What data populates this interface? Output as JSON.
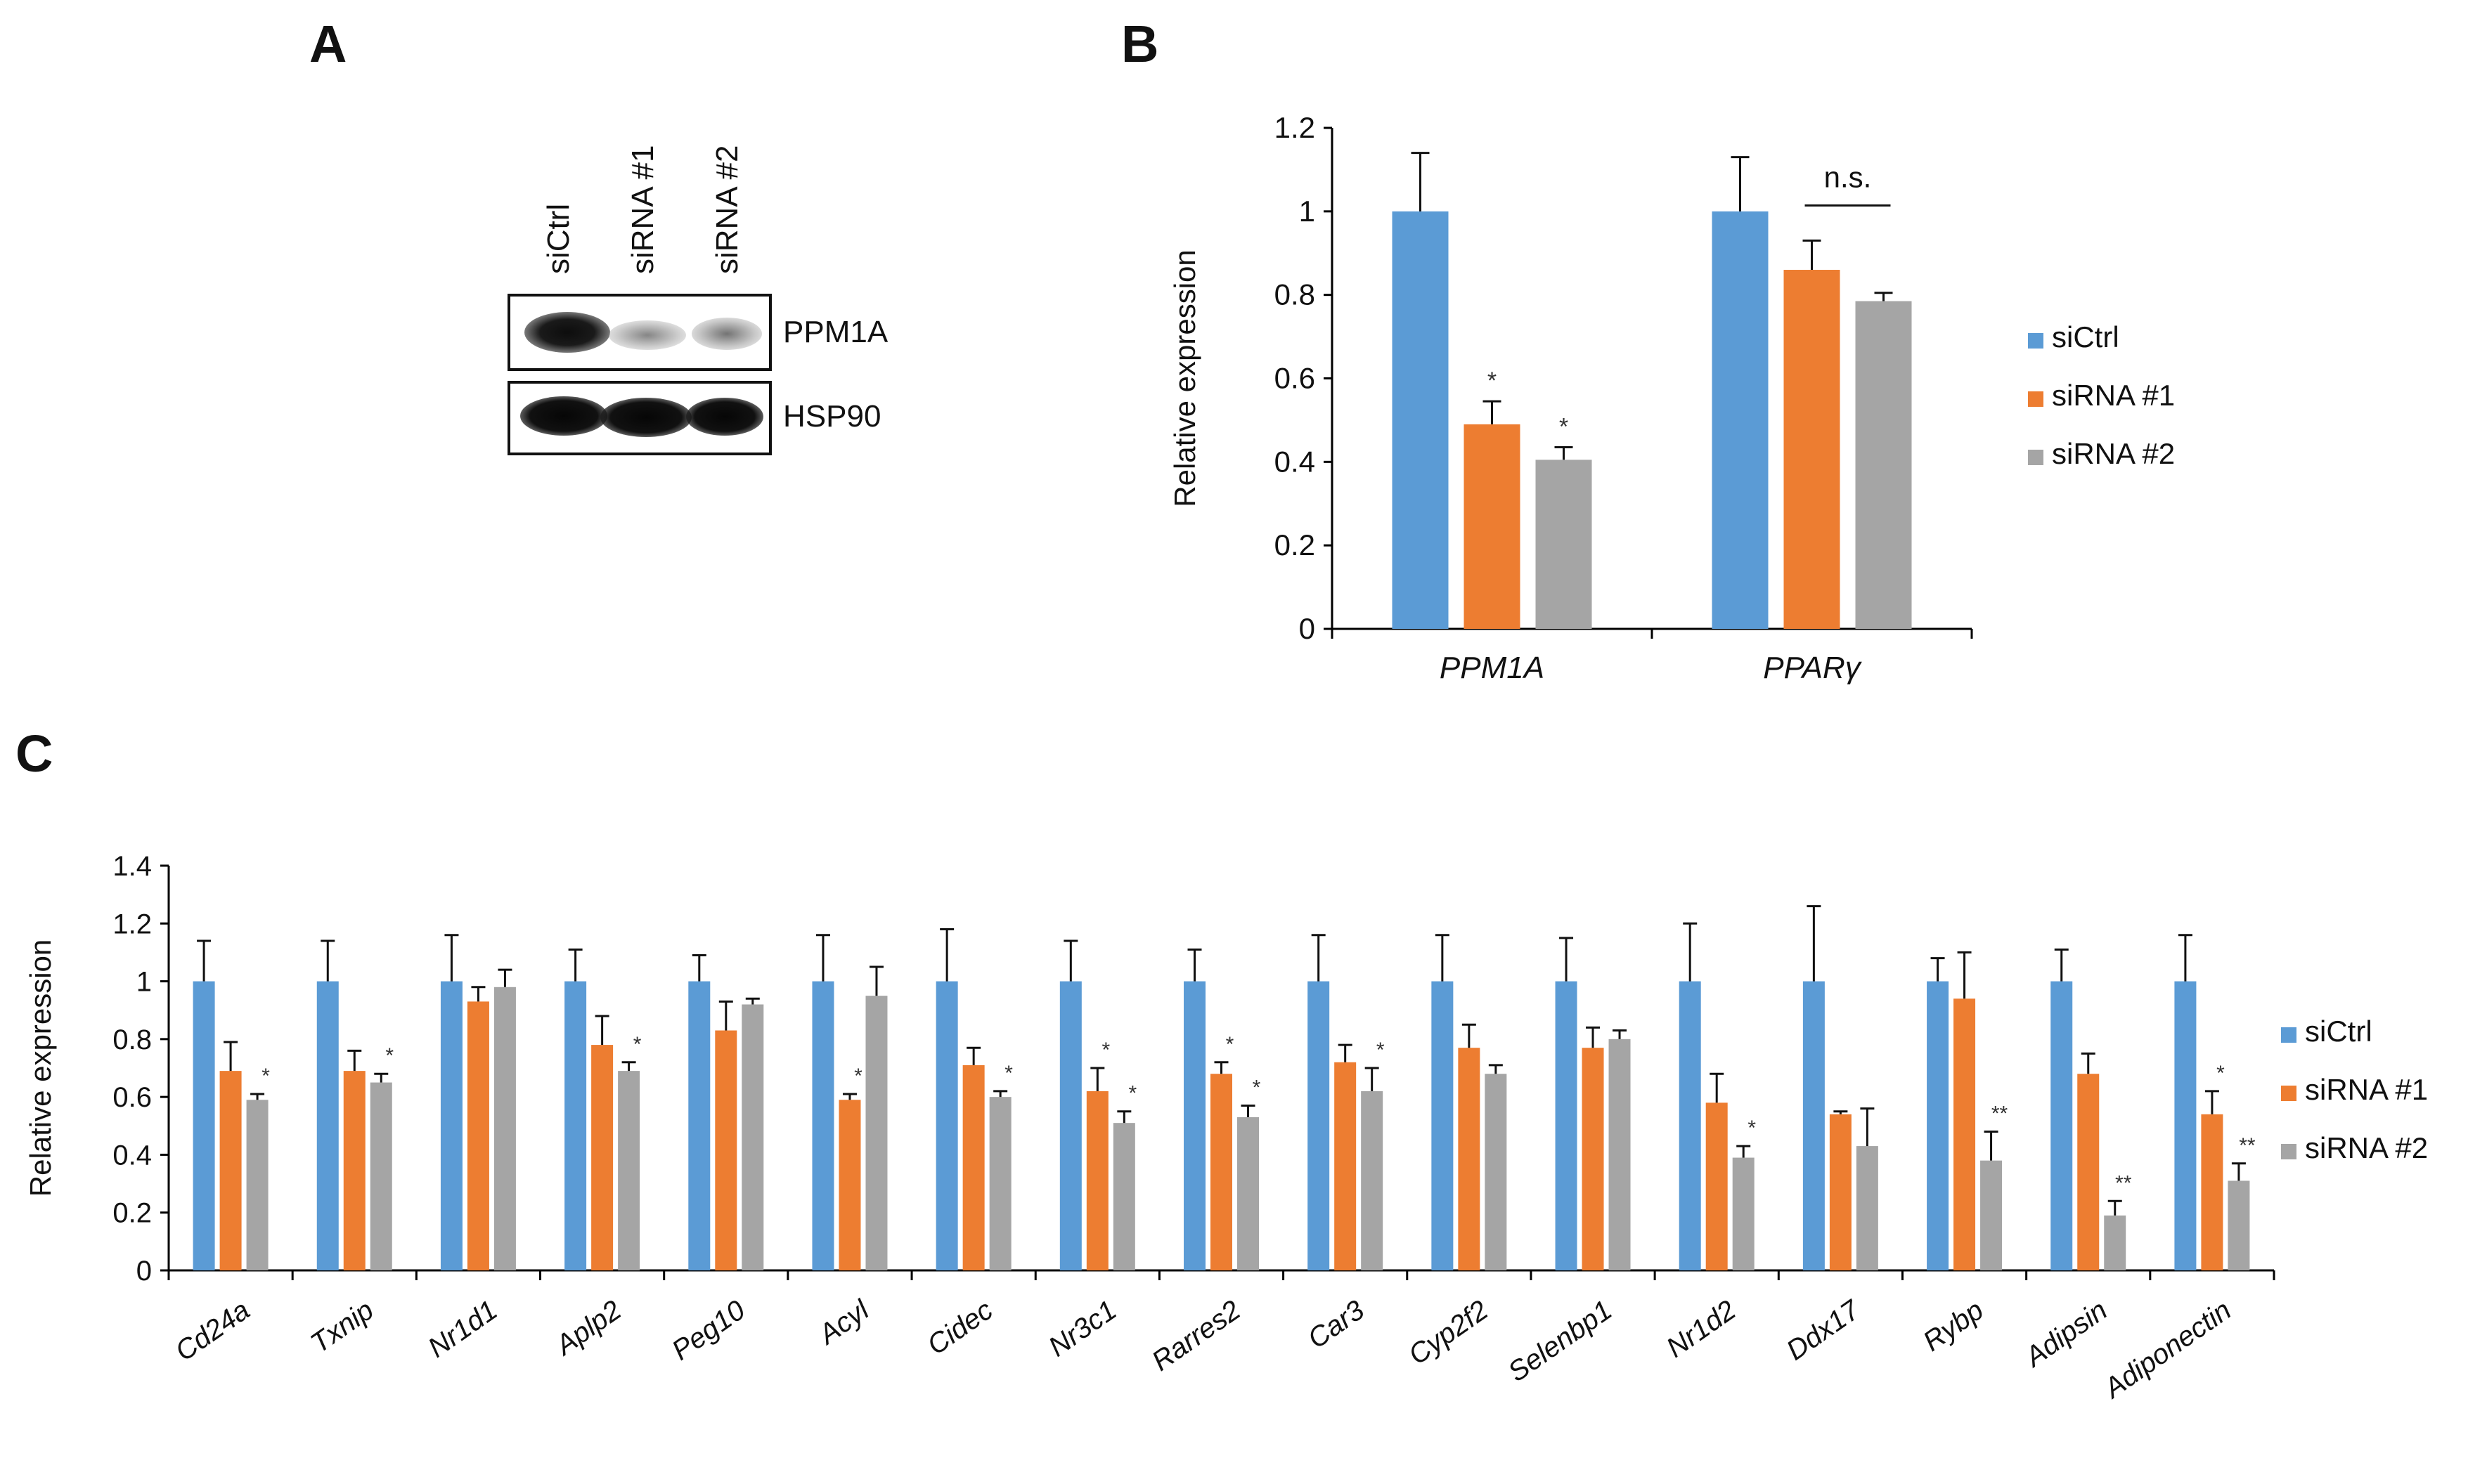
{
  "panels": {
    "a": "A",
    "b": "B",
    "c": "C"
  },
  "western_blot": {
    "lanes": [
      "siCtrl",
      "siRNA #1",
      "siRNA #2"
    ],
    "proteins": [
      "PPM1A",
      "HSP90"
    ]
  },
  "legend": {
    "items": [
      "siCtrl",
      "siRNA #1",
      "siRNA #2"
    ]
  },
  "colors": {
    "siCtrl": "#5b9bd5",
    "siRNA #1": "#ed7d31",
    "siRNA #2": "#a5a5a5",
    "axis": "#000000"
  },
  "chart_data": [
    {
      "type": "bar",
      "panel": "B",
      "ylabel": "Relative expression",
      "ylim": [
        0,
        1.2
      ],
      "yticks": [
        "0",
        "0.2",
        "0.4",
        "0.6",
        "0.8",
        "1",
        "1.2"
      ],
      "categories": [
        "PPM1A",
        "PPARγ"
      ],
      "series": [
        {
          "name": "siCtrl",
          "values": [
            1,
            1
          ],
          "errors": [
            0.14,
            0.13
          ],
          "annotations": [
            "",
            ""
          ]
        },
        {
          "name": "siRNA #1",
          "values": [
            0.49,
            0.86
          ],
          "errors": [
            0.055,
            0.07
          ],
          "annotations": [
            "*",
            ""
          ]
        },
        {
          "name": "siRNA #2",
          "values": [
            0.405,
            0.785
          ],
          "errors": [
            0.03,
            0.02
          ],
          "annotations": [
            "*",
            ""
          ]
        }
      ],
      "significance": {
        "label": "n.s.",
        "between": [
          "siRNA #1",
          "siRNA #2"
        ],
        "category": "PPARγ"
      },
      "legend_position": "right"
    },
    {
      "type": "bar",
      "panel": "C",
      "ylabel": "Relative expression",
      "ylim": [
        0,
        1.4
      ],
      "yticks": [
        "0",
        "0.2",
        "0.4",
        "0.6",
        "0.8",
        "1",
        "1.2",
        "1.4"
      ],
      "categories": [
        "Cd24a",
        "Txnip",
        "Nr1d1",
        "Aplp2",
        "Peg10",
        "Acyl",
        "Cidec",
        "Nr3c1",
        "Rarres2",
        "Car3",
        "Cyp2f2",
        "Selenbp1",
        "Nr1d2",
        "Ddx17",
        "Rybp",
        "Adipsin",
        "Adiponectin"
      ],
      "series": [
        {
          "name": "siCtrl",
          "values": [
            1,
            1,
            1,
            1,
            1,
            1,
            1,
            1,
            1,
            1,
            1,
            1,
            1,
            1,
            1,
            1,
            1
          ],
          "errors": [
            0.14,
            0.14,
            0.16,
            0.11,
            0.09,
            0.16,
            0.18,
            0.14,
            0.11,
            0.16,
            0.16,
            0.15,
            0.2,
            0.26,
            0.08,
            0.11,
            0.16
          ],
          "annotations": [
            "",
            "",
            "",
            "",
            "",
            "",
            "",
            "",
            "",
            "",
            "",
            "",
            "",
            "",
            "",
            "",
            ""
          ]
        },
        {
          "name": "siRNA #1",
          "values": [
            0.69,
            0.69,
            0.93,
            0.78,
            0.83,
            0.59,
            0.71,
            0.62,
            0.68,
            0.72,
            0.77,
            0.77,
            0.58,
            0.54,
            0.94,
            0.68,
            0.54
          ],
          "errors": [
            0.1,
            0.07,
            0.05,
            0.1,
            0.1,
            0.02,
            0.06,
            0.08,
            0.04,
            0.06,
            0.08,
            0.07,
            0.1,
            0.01,
            0.16,
            0.07,
            0.08
          ],
          "annotations": [
            "",
            "",
            "",
            "",
            "",
            "*",
            "",
            "*",
            "*",
            "",
            "",
            "",
            "",
            "",
            "",
            "",
            "*"
          ]
        },
        {
          "name": "siRNA #2",
          "values": [
            0.59,
            0.65,
            0.98,
            0.69,
            0.92,
            0.95,
            0.6,
            0.51,
            0.53,
            0.62,
            0.68,
            0.8,
            0.39,
            0.43,
            0.38,
            0.19,
            0.31
          ],
          "errors": [
            0.02,
            0.03,
            0.06,
            0.03,
            0.02,
            0.1,
            0.02,
            0.04,
            0.04,
            0.08,
            0.03,
            0.03,
            0.04,
            0.13,
            0.1,
            0.05,
            0.06
          ],
          "annotations": [
            "*",
            "*",
            "",
            "*",
            "",
            "",
            "*",
            "*",
            "*",
            "*",
            "",
            "",
            "*",
            "",
            "**",
            "**",
            "**"
          ]
        }
      ],
      "legend_position": "right"
    }
  ]
}
